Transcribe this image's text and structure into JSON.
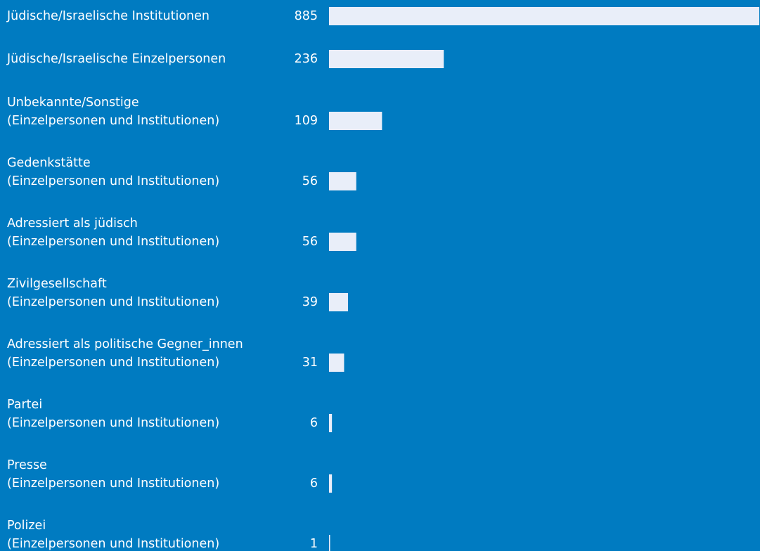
{
  "chart_data": {
    "type": "barh",
    "categories": [
      [
        "Jüdische/Israelische Institutionen"
      ],
      [
        "Jüdische/Israelische Einzelpersonen"
      ],
      [
        "Unbekannte/Sonstige",
        "(Einzelpersonen und Institutionen)"
      ],
      [
        "Gedenkstätte",
        "(Einzelpersonen und Institutionen)"
      ],
      [
        "Adressiert als jüdisch",
        "(Einzelpersonen und Institutionen)"
      ],
      [
        "Zivilgesellschaft",
        "(Einzelpersonen und Institutionen)"
      ],
      [
        "Adressiert als politische Gegner_innen",
        "(Einzelpersonen und Institutionen)"
      ],
      [
        "Partei",
        "(Einzelpersonen und Institutionen)"
      ],
      [
        "Presse",
        "(Einzelpersonen und Institutionen)"
      ],
      [
        "Polizei",
        "(Einzelpersonen und Institutionen)"
      ]
    ],
    "values": [
      885,
      236,
      109,
      56,
      56,
      39,
      31,
      6,
      6,
      1
    ],
    "color": "#e9eef9",
    "background": "#007bc1"
  }
}
